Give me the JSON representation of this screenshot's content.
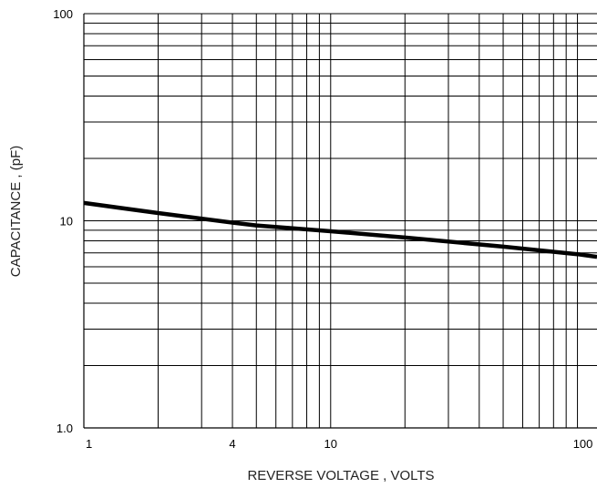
{
  "chart_data": {
    "type": "line",
    "title": "",
    "xlabel": "REVERSE VOLTAGE , VOLTS",
    "ylabel": "CAPACITANCE , (pF)",
    "x_scale": "log",
    "y_scale": "log",
    "xlim": [
      1,
      120
    ],
    "ylim": [
      1,
      100
    ],
    "grid": true,
    "x_grid_lines": [
      2,
      3,
      4,
      5,
      6,
      7,
      8,
      9,
      10,
      20,
      30,
      40,
      50,
      60,
      70,
      80,
      90,
      100
    ],
    "y_grid_lines": [
      2,
      3,
      4,
      5,
      6,
      7,
      8,
      9,
      10,
      20,
      30,
      40,
      50,
      60,
      70,
      80,
      90,
      100
    ],
    "x_tick_labels": [
      {
        "value": 1,
        "label": "1"
      },
      {
        "value": 4,
        "label": "4"
      },
      {
        "value": 10,
        "label": "10"
      },
      {
        "value": 100,
        "label": "100"
      }
    ],
    "y_tick_labels": [
      {
        "value": 100,
        "label": "100"
      },
      {
        "value": 10,
        "label": "10"
      },
      {
        "value": 1,
        "label": "1.0"
      }
    ],
    "series": [
      {
        "x": [
          1,
          2,
          4,
          5,
          10,
          20,
          50,
          100,
          120
        ],
        "y": [
          12.2,
          10.9,
          9.8,
          9.5,
          8.9,
          8.3,
          7.5,
          6.9,
          6.7
        ]
      }
    ]
  }
}
